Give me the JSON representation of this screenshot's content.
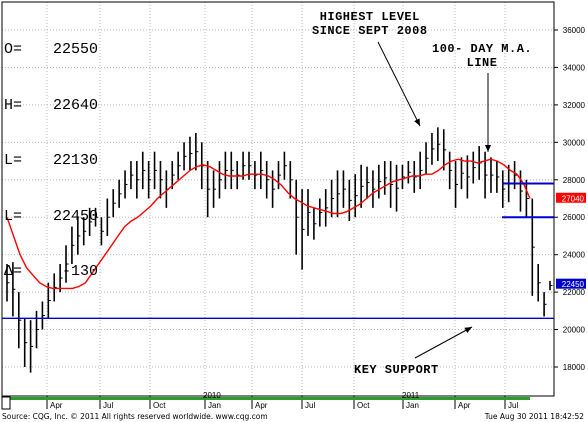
{
  "ohlc": [
    {
      "key": "O=",
      "value": "22550"
    },
    {
      "key": "H=",
      "value": "22640"
    },
    {
      "key": "L=",
      "value": "22130"
    },
    {
      "key": "L=",
      "value": "22450"
    },
    {
      "key": "Δ=",
      "value": "-130"
    }
  ],
  "annotations": {
    "highest_level": "HIGHEST LEVEL\nSINCE SEPT 2008",
    "ma_line": "100- DAY M.A.\nLINE",
    "key_support": "KEY SUPPORT"
  },
  "footer": {
    "source": "Source: CQG, Inc. © 2011 All rights reserved worldwide. www.cqg.com",
    "timestamp": "Tue Aug 30 2011 18:42:52"
  },
  "colors": {
    "price_bars": "#000000",
    "moving_average": "#ff0000",
    "support_line": "#0000cc",
    "range_lines": "#0000cc",
    "last_price_tag": "#0000cc",
    "ma_tag": "#ff0000"
  },
  "chart_data": {
    "type": "ohlc",
    "y_ticks": [
      18000,
      20000,
      22000,
      24000,
      26000,
      28000,
      30000,
      32000,
      34000,
      36000
    ],
    "ylim": [
      17000,
      37000
    ],
    "x_month_labels": [
      "Apr",
      "Jul",
      "Oct",
      "Jan",
      "Apr",
      "Jul",
      "Oct",
      "Jan",
      "Apr",
      "Jul"
    ],
    "x_year_labels": [
      "2010",
      "2011"
    ],
    "last_price_tag": "22450",
    "ma_tag": "27040",
    "support_level": 20600,
    "range_upper": 27800,
    "range_lower": 26000,
    "weekly_bars": [
      {
        "h": 23500,
        "l": 21500
      },
      {
        "h": 23600,
        "l": 20700
      },
      {
        "h": 22000,
        "l": 19000
      },
      {
        "h": 20600,
        "l": 18000
      },
      {
        "h": 20500,
        "l": 17700
      },
      {
        "h": 21000,
        "l": 19000
      },
      {
        "h": 21500,
        "l": 20000
      },
      {
        "h": 22500,
        "l": 20600
      },
      {
        "h": 23000,
        "l": 21500
      },
      {
        "h": 23500,
        "l": 22000
      },
      {
        "h": 24500,
        "l": 22500
      },
      {
        "h": 25500,
        "l": 23500
      },
      {
        "h": 26000,
        "l": 24000
      },
      {
        "h": 26000,
        "l": 24500
      },
      {
        "h": 26500,
        "l": 25000
      },
      {
        "h": 26500,
        "l": 25500
      },
      {
        "h": 26000,
        "l": 24500
      },
      {
        "h": 27000,
        "l": 25000
      },
      {
        "h": 27500,
        "l": 26000
      },
      {
        "h": 28000,
        "l": 26500
      },
      {
        "h": 28500,
        "l": 27000
      },
      {
        "h": 29000,
        "l": 27500
      },
      {
        "h": 29000,
        "l": 27000
      },
      {
        "h": 29500,
        "l": 27500
      },
      {
        "h": 29000,
        "l": 27000
      },
      {
        "h": 29500,
        "l": 27500
      },
      {
        "h": 29000,
        "l": 27000
      },
      {
        "h": 28500,
        "l": 26500
      },
      {
        "h": 29000,
        "l": 27500
      },
      {
        "h": 29500,
        "l": 28000
      },
      {
        "h": 30000,
        "l": 28500
      },
      {
        "h": 30300,
        "l": 28500
      },
      {
        "h": 30500,
        "l": 28500
      },
      {
        "h": 30000,
        "l": 27500
      },
      {
        "h": 29000,
        "l": 26000
      },
      {
        "h": 28500,
        "l": 26500
      },
      {
        "h": 29000,
        "l": 27000
      },
      {
        "h": 29500,
        "l": 27500
      },
      {
        "h": 29500,
        "l": 27500
      },
      {
        "h": 29000,
        "l": 27500
      },
      {
        "h": 29500,
        "l": 28000
      },
      {
        "h": 29500,
        "l": 28000
      },
      {
        "h": 29000,
        "l": 27500
      },
      {
        "h": 29500,
        "l": 27500
      },
      {
        "h": 29000,
        "l": 27000
      },
      {
        "h": 28500,
        "l": 26500
      },
      {
        "h": 29000,
        "l": 27500
      },
      {
        "h": 29500,
        "l": 28000
      },
      {
        "h": 29000,
        "l": 27000
      },
      {
        "h": 28000,
        "l": 24000
      },
      {
        "h": 27500,
        "l": 23200
      },
      {
        "h": 27500,
        "l": 25000
      },
      {
        "h": 26500,
        "l": 24800
      },
      {
        "h": 27000,
        "l": 25500
      },
      {
        "h": 27500,
        "l": 25500
      },
      {
        "h": 28000,
        "l": 26000
      },
      {
        "h": 28500,
        "l": 26000
      },
      {
        "h": 28500,
        "l": 26500
      },
      {
        "h": 28000,
        "l": 25800
      },
      {
        "h": 28300,
        "l": 26000
      },
      {
        "h": 28800,
        "l": 26500
      },
      {
        "h": 28700,
        "l": 27000
      },
      {
        "h": 28500,
        "l": 26500
      },
      {
        "h": 28800,
        "l": 27000
      },
      {
        "h": 29000,
        "l": 27200
      },
      {
        "h": 29000,
        "l": 26500
      },
      {
        "h": 28800,
        "l": 26300
      },
      {
        "h": 28800,
        "l": 27500
      },
      {
        "h": 29000,
        "l": 27800
      },
      {
        "h": 29000,
        "l": 27300
      },
      {
        "h": 29500,
        "l": 27500
      },
      {
        "h": 30000,
        "l": 28300
      },
      {
        "h": 30500,
        "l": 28800
      },
      {
        "h": 30800,
        "l": 29000
      },
      {
        "h": 30700,
        "l": 28500
      },
      {
        "h": 29500,
        "l": 27500
      },
      {
        "h": 29000,
        "l": 26500
      },
      {
        "h": 29200,
        "l": 27500
      },
      {
        "h": 29300,
        "l": 27000
      },
      {
        "h": 29500,
        "l": 27800
      },
      {
        "h": 29800,
        "l": 28000
      },
      {
        "h": 29500,
        "l": 27000
      },
      {
        "h": 29200,
        "l": 27300
      },
      {
        "h": 29000,
        "l": 27300
      },
      {
        "h": 28500,
        "l": 26500
      },
      {
        "h": 28800,
        "l": 26800
      },
      {
        "h": 29000,
        "l": 27500
      },
      {
        "h": 28500,
        "l": 26300
      },
      {
        "h": 28000,
        "l": 26000
      },
      {
        "h": 27000,
        "l": 21800
      },
      {
        "h": 23500,
        "l": 21500
      },
      {
        "h": 22000,
        "l": 20700
      },
      {
        "h": 22600,
        "l": 22100
      }
    ],
    "moving_average": [
      26000,
      25000,
      24000,
      23300,
      22900,
      22500,
      22300,
      22200,
      22200,
      22200,
      22200,
      22300,
      22500,
      23000,
      23500,
      24000,
      24500,
      25000,
      25500,
      25800,
      26000,
      26300,
      26600,
      27000,
      27300,
      27600,
      27900,
      28200,
      28500,
      28700,
      28800,
      28700,
      28500,
      28300,
      28200,
      28200,
      28200,
      28300,
      28300,
      28300,
      28200,
      28000,
      27700,
      27300,
      27000,
      26800,
      26600,
      26500,
      26400,
      26300,
      26200,
      26200,
      26300,
      26500,
      26700,
      27000,
      27300,
      27500,
      27700,
      27900,
      28000,
      28100,
      28200,
      28200,
      28300,
      28300,
      28500,
      28800,
      29000,
      29100,
      29000,
      29000,
      28900,
      29000,
      29100,
      29000,
      28800,
      28500,
      28300,
      27800,
      27000
    ]
  }
}
